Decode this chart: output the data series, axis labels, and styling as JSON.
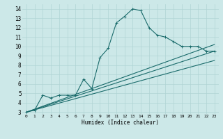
{
  "xlabel": "Humidex (Indice chaleur)",
  "bg_color": "#cce8e8",
  "grid_color": "#b0d4d4",
  "line_color": "#1a6b6b",
  "xlim": [
    -0.5,
    23.5
  ],
  "ylim": [
    2.8,
    14.5
  ],
  "xticks": [
    0,
    1,
    2,
    3,
    4,
    5,
    6,
    7,
    8,
    9,
    10,
    11,
    12,
    13,
    14,
    15,
    16,
    17,
    18,
    19,
    20,
    21,
    22,
    23
  ],
  "yticks": [
    3,
    4,
    5,
    6,
    7,
    8,
    9,
    10,
    11,
    12,
    13,
    14
  ],
  "series": [
    {
      "x": [
        0,
        1,
        2,
        3,
        4,
        5,
        6,
        7,
        8,
        9,
        10,
        11,
        12,
        13,
        14,
        15,
        16,
        17,
        18,
        19,
        20,
        21,
        22,
        23
      ],
      "y": [
        3.0,
        3.2,
        4.8,
        4.5,
        4.8,
        4.8,
        4.8,
        6.5,
        5.5,
        8.8,
        9.8,
        12.5,
        13.2,
        14.0,
        13.8,
        12.0,
        11.2,
        11.0,
        10.5,
        10.0,
        10.0,
        10.0,
        9.5,
        9.5
      ],
      "has_marker": true
    },
    {
      "x": [
        0,
        23
      ],
      "y": [
        3.0,
        10.2
      ],
      "has_marker": false
    },
    {
      "x": [
        0,
        23
      ],
      "y": [
        3.0,
        9.5
      ],
      "has_marker": false
    },
    {
      "x": [
        0,
        23
      ],
      "y": [
        3.0,
        8.5
      ],
      "has_marker": false
    }
  ]
}
